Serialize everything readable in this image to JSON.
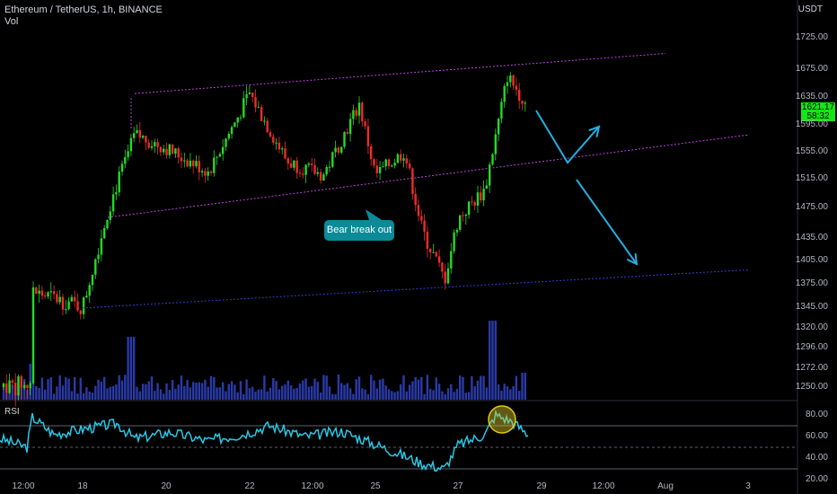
{
  "header": {
    "symbol": "Ethereum / TetherUS, 1h, BINANCE",
    "vol_label": "Vol",
    "currency": "USDT"
  },
  "rsi": {
    "label": "RSI",
    "levels": [
      "80.00",
      "60.00",
      "40.00",
      "20.00"
    ]
  },
  "annotation": {
    "text": "Bear break out"
  },
  "price_tag": {
    "price": "1621.17",
    "countdown": "58:32"
  },
  "colors": {
    "up": "#26d926",
    "down": "#ef2b2b",
    "volume": "#2a3aa8",
    "channel": "#c040e0",
    "support": "#3040d0",
    "arrow": "#22aee0",
    "rsi": "#27c8e6"
  },
  "chart_data": {
    "type": "candlestick",
    "title": "Ethereum / TetherUS, 1h, BINANCE",
    "y_ticks": [
      1725,
      1675,
      1635,
      1595,
      1555,
      1515,
      1475,
      1435,
      1405,
      1375,
      1345,
      1320,
      1296,
      1272,
      1250
    ],
    "y_tick_labels": [
      "1725.00",
      "1675.00",
      "1635.00",
      "1595.00",
      "1555.00",
      "1515.00",
      "1475.00",
      "1435.00",
      "1405.00",
      "1375.00",
      "1345.00",
      "1320.00",
      "1296.00",
      "1272.00",
      "1250.00"
    ],
    "x_tick_labels": [
      "12:00",
      "18",
      "20",
      "22",
      "12:00",
      "25",
      "27",
      "29",
      "12:00",
      "Aug",
      "3"
    ],
    "price_path_key_points": [
      {
        "t": "17 12:00",
        "close": 1250
      },
      {
        "t": "17 18:00",
        "close": 1365
      },
      {
        "t": "18",
        "close": 1345
      },
      {
        "t": "18 12:00",
        "close": 1470
      },
      {
        "t": "19",
        "close": 1580
      },
      {
        "t": "20",
        "close": 1560
      },
      {
        "t": "21",
        "close": 1525
      },
      {
        "t": "22",
        "close": 1640
      },
      {
        "t": "22 12:00",
        "close": 1540
      },
      {
        "t": "23",
        "close": 1520
      },
      {
        "t": "24",
        "close": 1625
      },
      {
        "t": "25",
        "close": 1520
      },
      {
        "t": "25 12:00",
        "close": 1555
      },
      {
        "t": "26",
        "close": 1445
      },
      {
        "t": "26 12:00",
        "close": 1380
      },
      {
        "t": "27",
        "close": 1460
      },
      {
        "t": "27 12:00",
        "close": 1500
      },
      {
        "t": "28",
        "close": 1665
      },
      {
        "t": "28 12:00",
        "close": 1621.17
      }
    ],
    "channel_upper": [
      {
        "t": "19",
        "y": 1640
      },
      {
        "t": "Aug",
        "y": 1700
      }
    ],
    "channel_lower": [
      {
        "t": "18 12:00",
        "y": 1462
      },
      {
        "t": "3",
        "y": 1580
      }
    ],
    "support_line": [
      {
        "t": "18",
        "y": 1344
      },
      {
        "t": "3",
        "y": 1393
      }
    ],
    "last_price": 1621.17
  }
}
